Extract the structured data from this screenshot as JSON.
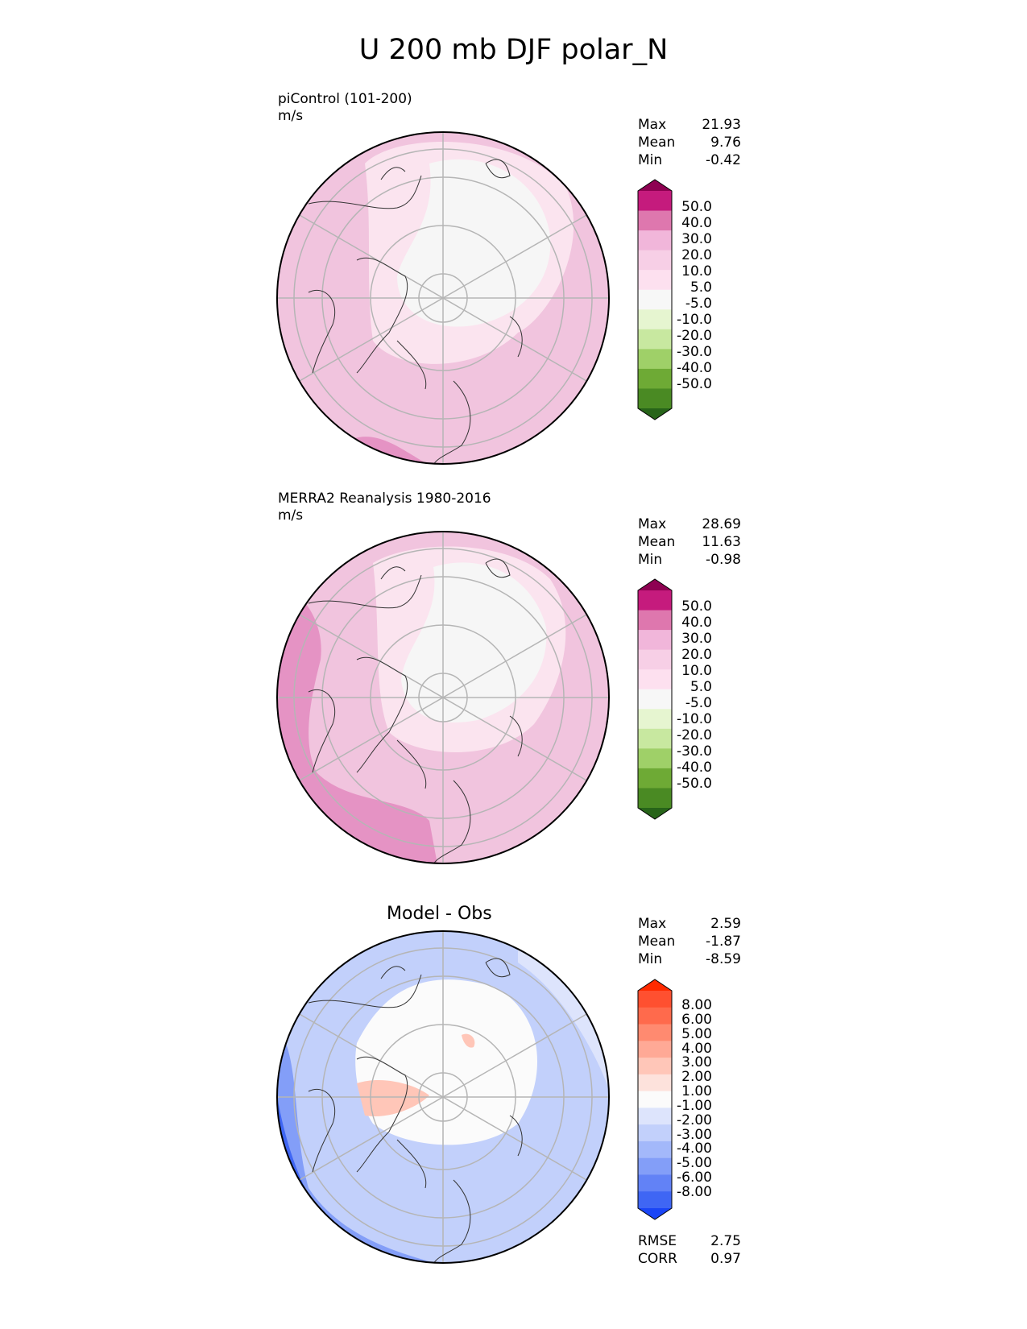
{
  "figure_title": "U 200 mb DJF polar_N",
  "panels": [
    {
      "label_line1": "piControl (101-200)",
      "label_line2": "m/s",
      "stats": [
        {
          "name": "Max",
          "value": "21.93"
        },
        {
          "name": "Mean",
          "value": "9.76"
        },
        {
          "name": "Min",
          "value": "-0.42"
        }
      ]
    },
    {
      "label_line1": "MERRA2 Reanalysis 1980-2016",
      "label_line2": "m/s",
      "stats": [
        {
          "name": "Max",
          "value": "28.69"
        },
        {
          "name": "Mean",
          "value": "11.63"
        },
        {
          "name": "Min",
          "value": "-0.98"
        }
      ]
    },
    {
      "title": "Model - Obs",
      "stats": [
        {
          "name": "Max",
          "value": "2.59"
        },
        {
          "name": "Mean",
          "value": "-1.87"
        },
        {
          "name": "Min",
          "value": "-8.59"
        }
      ],
      "metrics": [
        {
          "name": "RMSE",
          "value": "2.75"
        },
        {
          "name": "CORR",
          "value": "0.97"
        }
      ]
    }
  ],
  "colorbar_field": {
    "labels": [
      "50.0",
      "40.0",
      "30.0",
      "20.0",
      "10.0",
      "5.0",
      "-5.0",
      "-10.0",
      "-20.0",
      "-30.0",
      "-40.0",
      "-50.0"
    ],
    "colors": [
      "#8e0152",
      "#c51b7d",
      "#de77ae",
      "#f1b6da",
      "#f7cfe6",
      "#fde0ef",
      "#f7f7f7",
      "#e6f5d0",
      "#c8e8a0",
      "#9fd068",
      "#6eaa35",
      "#4a8a23",
      "#276419"
    ]
  },
  "colorbar_diff": {
    "labels": [
      "8.00",
      "6.00",
      "5.00",
      "4.00",
      "3.00",
      "2.00",
      "1.00",
      "-1.00",
      "-2.00",
      "-3.00",
      "-4.00",
      "-5.00",
      "-6.00",
      "-8.00"
    ],
    "colors": [
      "#ff2a00",
      "#ff5030",
      "#ff6a4c",
      "#ff8a70",
      "#ffa996",
      "#ffc6b8",
      "#fde2dc",
      "#fbfbfb",
      "#dde4fc",
      "#c2d0fb",
      "#a3b8fa",
      "#839ef8",
      "#6282f6",
      "#3f66f4",
      "#1a45f6"
    ]
  }
}
